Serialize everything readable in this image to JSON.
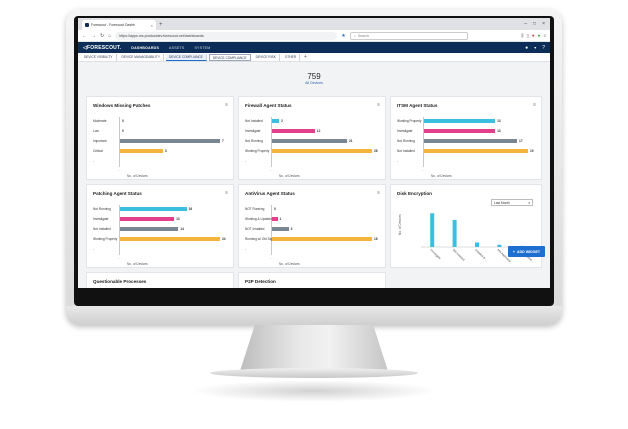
{
  "browser": {
    "tab_title": "Forescout - Forescout Dashb",
    "url": "https://apps.ms.productdev.forescout.net/dashboards",
    "search_placeholder": "Search"
  },
  "app": {
    "logo": "FORESCOUT.",
    "nav": [
      "DASHBOARDS",
      "ASSETS",
      "SYSTEM"
    ],
    "active_nav": "DASHBOARDS"
  },
  "subtabs": [
    "DEVICE VISIBILITY",
    "DEVICE MANAGEABILITY",
    "DEVICE COMPLIANCE",
    "DEVICE COMPLIANCE",
    "DEVICE RISK",
    "OTHER"
  ],
  "summary": {
    "count": "759",
    "label": "All Devices"
  },
  "colors": {
    "cyan": "#3bbfe0",
    "pink": "#e2408a",
    "gray": "#7b8694",
    "orange": "#f5b43c",
    "navy": "#0c2d57",
    "blue": "#1f6fd1"
  },
  "widgets": [
    {
      "title": "Windows Missing Patches",
      "axis_title": "No. of Devices",
      "rows": [
        {
          "label": "Moderate",
          "value": "0",
          "color": "none"
        },
        {
          "label": "Low",
          "value": "0",
          "color": "none"
        },
        {
          "label": "Important",
          "value": "7",
          "color": "gray"
        },
        {
          "label": "Critical",
          "value": "3",
          "color": "orange"
        },
        {
          "label": "-",
          "value": "",
          "color": "none"
        }
      ]
    },
    {
      "title": "Firewall Agent Status",
      "axis_title": "No. of Devices",
      "rows": [
        {
          "label": "Not Installed",
          "value": "2",
          "color": "cyan"
        },
        {
          "label": "Investigate",
          "value": "12",
          "color": "pink"
        },
        {
          "label": "Not Running",
          "value": "21",
          "color": "gray"
        },
        {
          "label": "Working Properly",
          "value": "28",
          "color": "orange"
        },
        {
          "label": "-",
          "value": "",
          "color": "none"
        }
      ]
    },
    {
      "title": "ITSM Agent Status",
      "axis_title": "No. of Devices",
      "rows": [
        {
          "label": "Working Properly",
          "value": "13",
          "color": "cyan"
        },
        {
          "label": "Investigate",
          "value": "13",
          "color": "pink"
        },
        {
          "label": "Not Running",
          "value": "17",
          "color": "gray"
        },
        {
          "label": "Not Installed",
          "value": "19",
          "color": "orange"
        },
        {
          "label": "-",
          "value": "",
          "color": "none"
        }
      ]
    },
    {
      "title": "Patching Agent Status",
      "axis_title": "No. of Devices",
      "rows": [
        {
          "label": "Not Running",
          "value": "16",
          "color": "cyan"
        },
        {
          "label": "Investigate",
          "value": "13",
          "color": "pink"
        },
        {
          "label": "Not Installed",
          "value": "14",
          "color": "gray"
        },
        {
          "label": "Working Properly",
          "value": "24",
          "color": "orange"
        },
        {
          "label": "-",
          "value": "",
          "color": "none"
        }
      ]
    },
    {
      "title": "AntiVirus Agent Status",
      "axis_title": "No. of Devices",
      "rows": [
        {
          "label": "NOT Running",
          "value": "0",
          "color": "none"
        },
        {
          "label": "Working & Updated",
          "value": "1",
          "color": "pink"
        },
        {
          "label": "NOT Installed",
          "value": "3",
          "color": "gray"
        },
        {
          "label": "Running w/ Old Sigs",
          "value": "18",
          "color": "orange"
        },
        {
          "label": "-",
          "value": "",
          "color": "none"
        }
      ]
    }
  ],
  "disk_encryption": {
    "title": "Disk Encryption",
    "period": "Last Month",
    "ylabel": "No. of Devices"
  },
  "bottom_widgets": [
    "Questionable Processes",
    "P2P Detection"
  ],
  "add_widget_label": "ADD WIDGET",
  "chart_data": {
    "type": "bar",
    "title": "Disk Encryption",
    "ylabel": "No. of Devices",
    "categories": [
      "Investigate",
      "Not Installed",
      "Installed & ...",
      "Not Applicable",
      "Not Installed ..."
    ],
    "values": [
      30,
      24,
      4,
      2,
      1
    ],
    "ylim": [
      0,
      32
    ]
  }
}
